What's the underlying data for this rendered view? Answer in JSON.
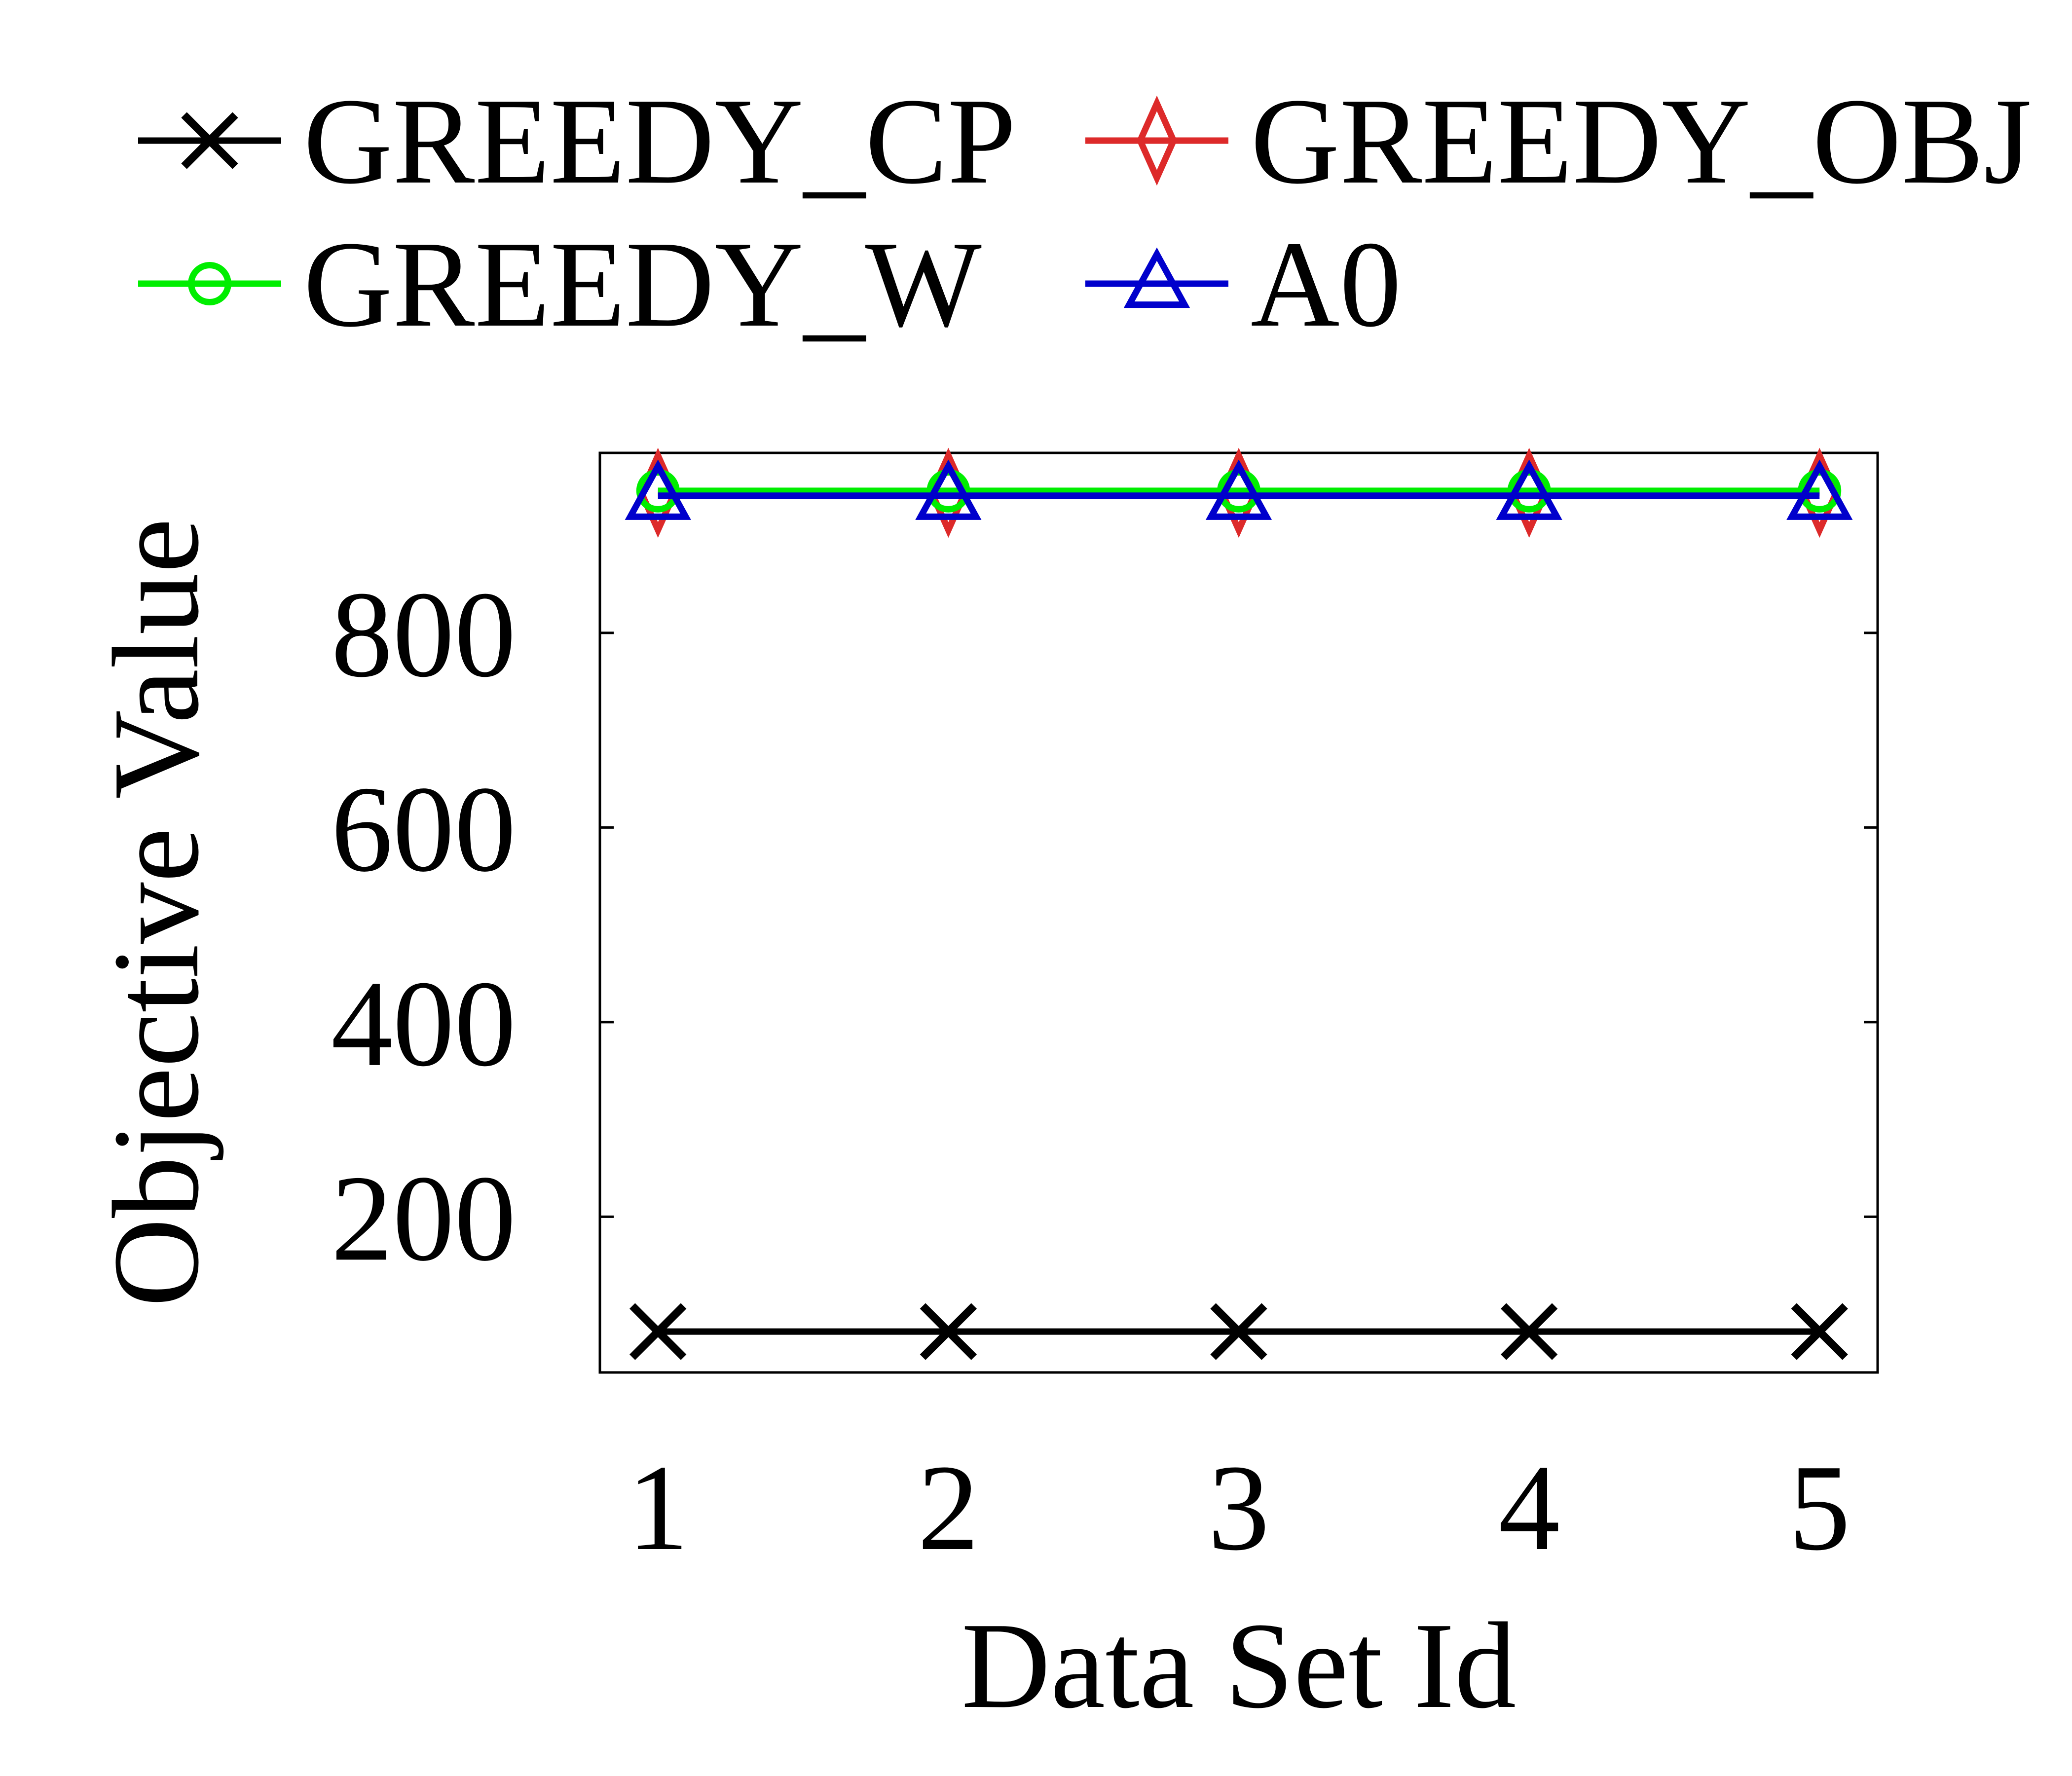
{
  "chart_data": {
    "type": "line",
    "x": [
      1,
      2,
      3,
      4,
      5
    ],
    "xlabel": "Data Set Id",
    "ylabel": "Objective Value",
    "xlim": [
      0.8,
      5.2
    ],
    "ylim": [
      40,
      985
    ],
    "yticks": [
      200,
      400,
      600,
      800
    ],
    "xticks": [
      1,
      2,
      3,
      4,
      5
    ],
    "grid": false,
    "legend_position": "top",
    "series": [
      {
        "name": "GREEDY_CP",
        "color": "#000000",
        "marker": "x-icon",
        "values": [
          82,
          82,
          82,
          82,
          82
        ]
      },
      {
        "name": "GREEDY_OBJ",
        "color": "#dd2a2a",
        "marker": "diamond-icon",
        "values": [
          944,
          944,
          944,
          944,
          944
        ]
      },
      {
        "name": "GREEDY_W",
        "color": "#00ee00",
        "marker": "circle-icon",
        "values": [
          946,
          946,
          946,
          946,
          946
        ]
      },
      {
        "name": "A0",
        "color": "#0000cc",
        "marker": "triangle-icon",
        "values": [
          941,
          941,
          941,
          941,
          941
        ]
      }
    ]
  }
}
